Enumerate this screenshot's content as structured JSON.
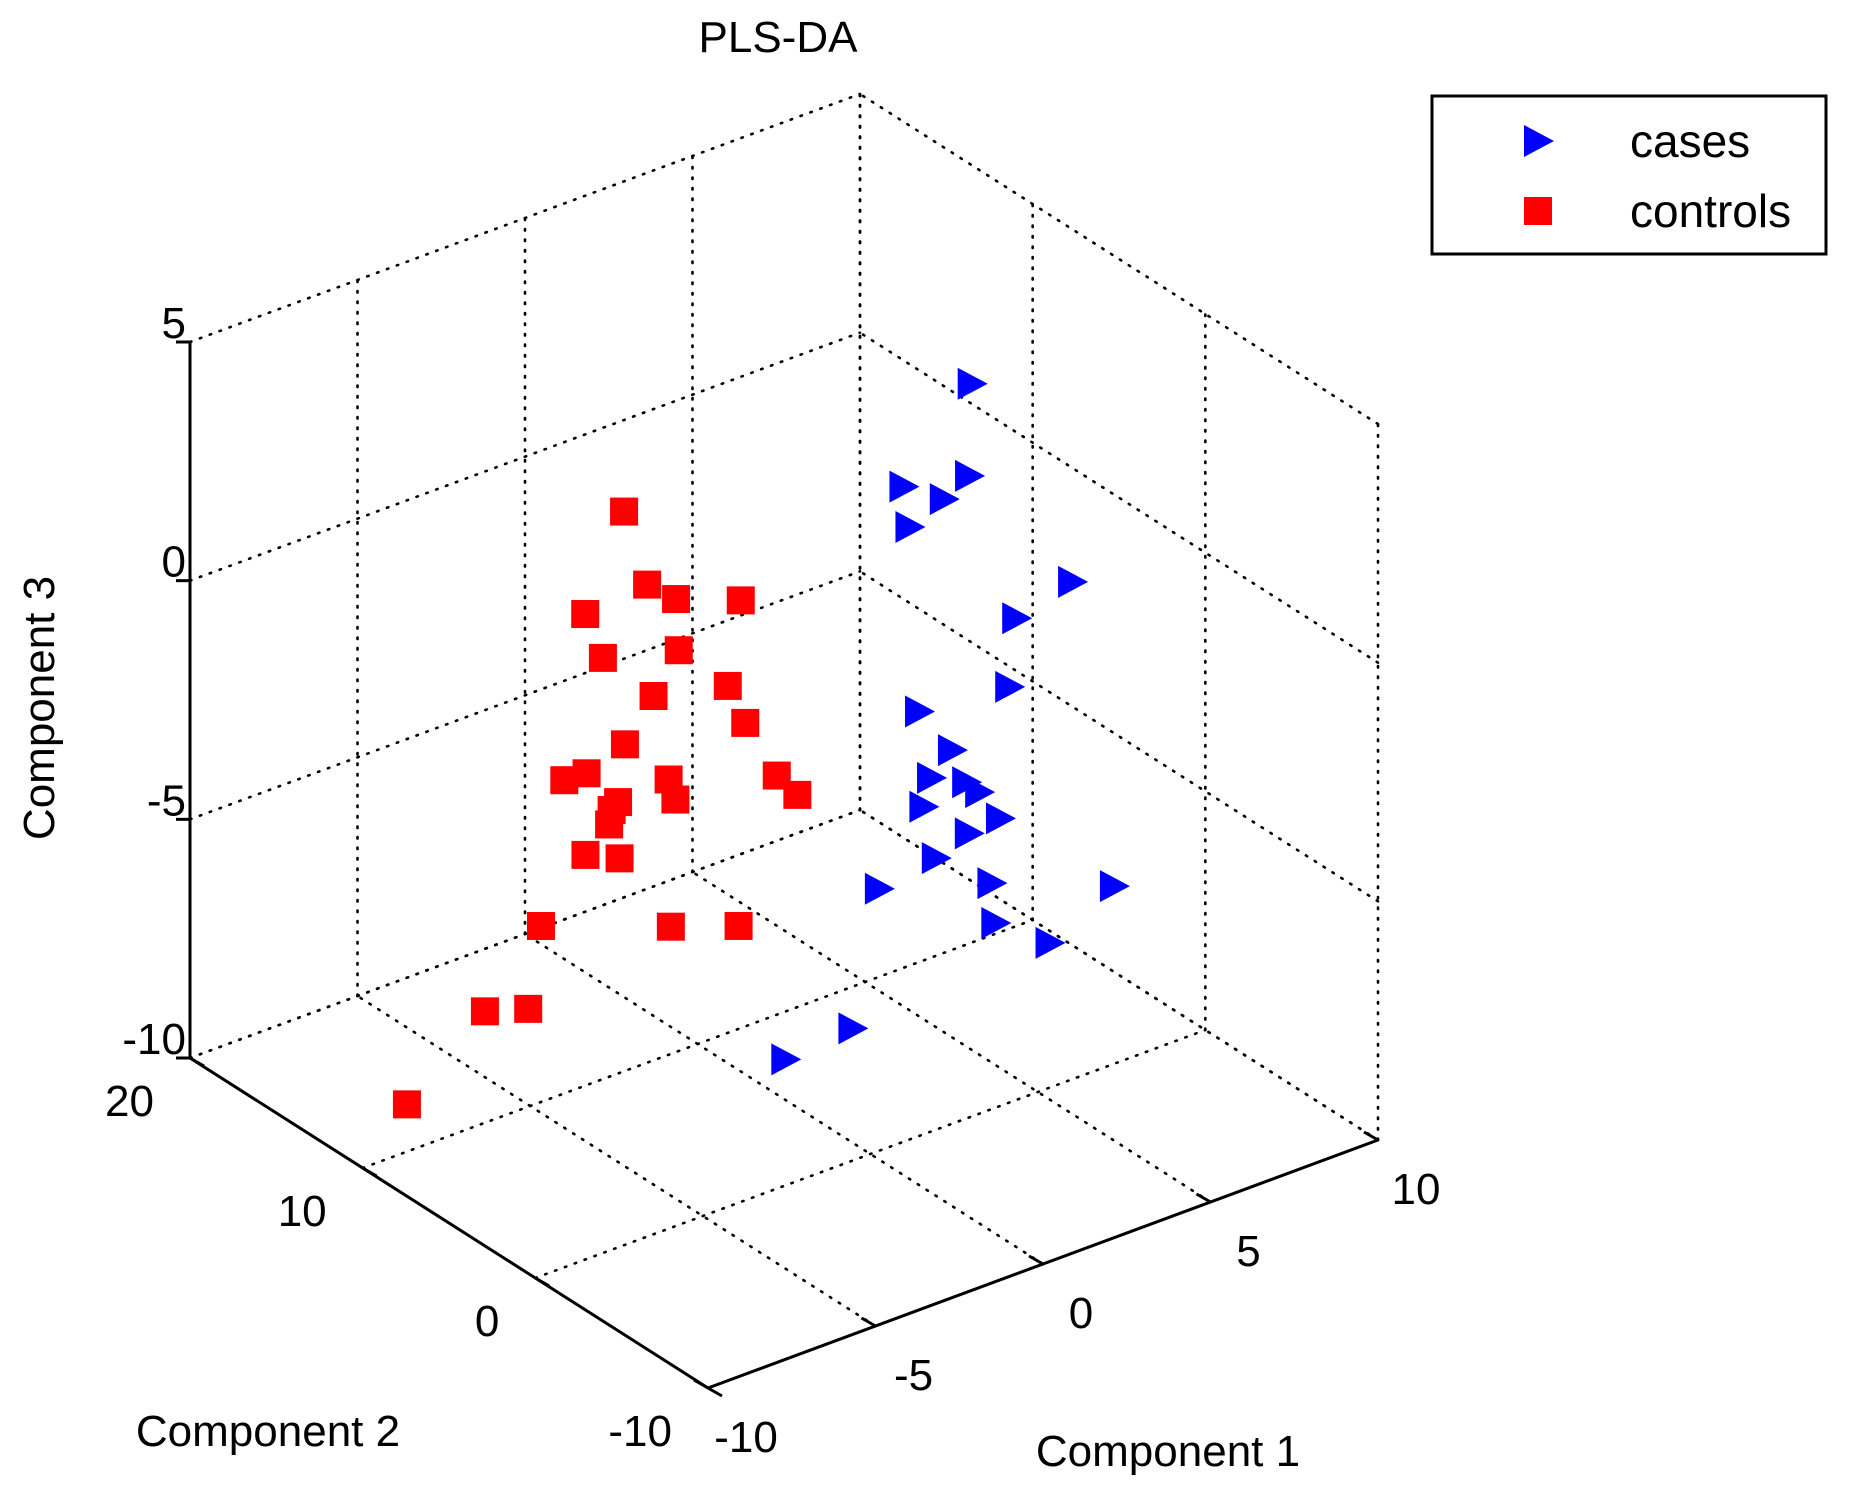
{
  "chart_data": {
    "type": "scatter",
    "projection": "3d",
    "title": "PLS-DA",
    "xlabel": "Component 1",
    "ylabel": "Component 2",
    "zlabel": "Component 3",
    "xlim": [
      -10,
      10
    ],
    "ylim": [
      -10,
      20
    ],
    "zlim": [
      -10,
      5
    ],
    "xticks": [
      -10,
      -5,
      0,
      5,
      10
    ],
    "yticks": [
      -10,
      0,
      10,
      20
    ],
    "zticks": [
      -10,
      -5,
      0,
      5
    ],
    "xtick_labels": [
      "-10",
      "-5",
      "0",
      "5",
      "10"
    ],
    "ytick_labels": [
      "-10",
      "0",
      "10",
      "20"
    ],
    "ztick_labels": [
      "-10",
      "-5",
      "0",
      "5"
    ],
    "grid": true,
    "legend_position": "top-right",
    "series": [
      {
        "name": "cases",
        "marker": "triangle-right",
        "color": "#0000FF",
        "points": [
          [
            7.2,
            8.1,
            2.4
          ],
          [
            6.4,
            6.7,
            1.0
          ],
          [
            4.7,
            7.2,
            1.1
          ],
          [
            5.8,
            7.0,
            0.6
          ],
          [
            3.9,
            5.3,
            0.9
          ],
          [
            8.6,
            5.0,
            -1.4
          ],
          [
            5.9,
            3.0,
            -1.0
          ],
          [
            4.3,
            0.3,
            -1.4
          ],
          [
            3.0,
            3.0,
            -2.2
          ],
          [
            2.9,
            0.9,
            -2.5
          ],
          [
            2.5,
            -0.7,
            -2.7
          ],
          [
            1.4,
            -0.8,
            -2.3
          ],
          [
            3.3,
            0.1,
            -3.3
          ],
          [
            1.6,
            -2.6,
            -3.1
          ],
          [
            2.1,
            1.0,
            -3.5
          ],
          [
            3.2,
            -1.3,
            -3.5
          ],
          [
            1.8,
            -0.3,
            -4.2
          ],
          [
            4.9,
            -4.6,
            -4.6
          ],
          [
            0.1,
            -0.3,
            -4.4
          ],
          [
            3.1,
            -1.0,
            -4.9
          ],
          [
            2.7,
            -2.0,
            -5.4
          ],
          [
            3.7,
            -3.2,
            -5.8
          ],
          [
            -2.7,
            -4.2,
            -5.7
          ],
          [
            -4.6,
            -4.0,
            -5.9
          ]
        ]
      },
      {
        "name": "controls",
        "marker": "square",
        "color": "#FF0000",
        "points": [
          [
            -4.0,
            6.5,
            3.0
          ],
          [
            -2.9,
            7.3,
            1.0
          ],
          [
            -2.5,
            6.4,
            0.8
          ],
          [
            -1.6,
            4.4,
            1.0
          ],
          [
            -3.4,
            4.5,
            0.4
          ],
          [
            -4.8,
            7.2,
            0.9
          ],
          [
            -5.2,
            5.4,
            0.5
          ],
          [
            -4.1,
            4.6,
            -0.4
          ],
          [
            -5.3,
            1.4,
            -1.1
          ],
          [
            -2.9,
            -1.4,
            -1.4
          ],
          [
            -6.5,
            2.0,
            -1.4
          ],
          [
            -5.2,
            1.2,
            -1.5
          ],
          [
            -6.1,
            4.6,
            -1.5
          ],
          [
            -4.8,
            4.9,
            -1.3
          ],
          [
            -2.4,
            3.6,
            -0.4
          ],
          [
            -2.6,
            2.2,
            -0.8
          ],
          [
            -3.0,
            -0.4,
            -1.2
          ],
          [
            -6.3,
            5.5,
            -1.8
          ],
          [
            -5.3,
            4.7,
            -2.5
          ],
          [
            -6.2,
            3.1,
            -2.2
          ],
          [
            -6.7,
            3.5,
            -2.8
          ],
          [
            -6.3,
            2.3,
            -2.7
          ],
          [
            -4.5,
            -1.1,
            -3.8
          ],
          [
            -5.8,
            0.3,
            -3.8
          ],
          [
            -7.1,
            5.3,
            -4.6
          ],
          [
            -8.1,
            4.1,
            -5.8
          ],
          [
            -8.0,
            6.8,
            -6.5
          ],
          [
            -9.4,
            8.6,
            -8.5
          ]
        ]
      }
    ]
  }
}
